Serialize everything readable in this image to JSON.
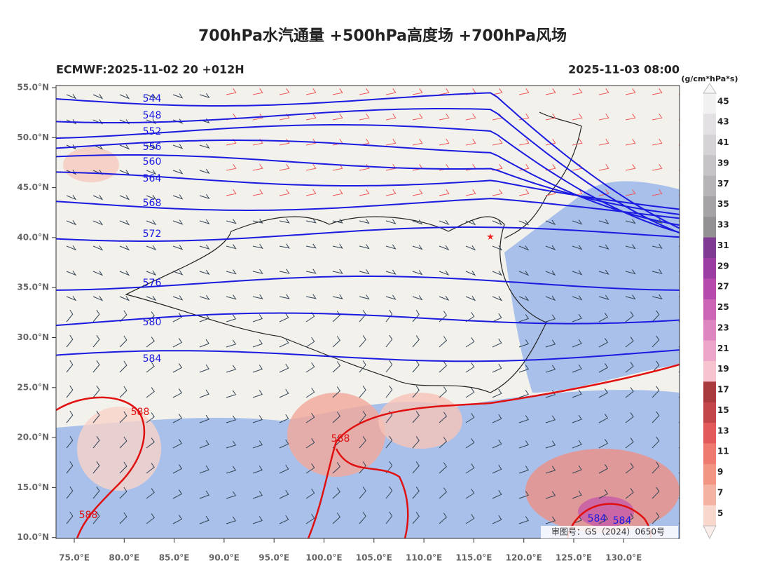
{
  "title": "700hPa水汽通量 +500hPa高度场 +700hPa风场",
  "model_run": "ECMWF:2025-11-02 20 +012H",
  "valid_time": "2025-11-03 08:00",
  "colorbar": {
    "unit": "(g/cm*hPa*s)",
    "ticks": [
      "45",
      "43",
      "41",
      "39",
      "37",
      "35",
      "33",
      "31",
      "29",
      "27",
      "25",
      "23",
      "21",
      "19",
      "17",
      "15",
      "13",
      "11",
      "9",
      "7",
      "5"
    ]
  },
  "lat_labels": [
    "55.0°N",
    "50.0°N",
    "45.0°N",
    "40.0°N",
    "35.0°N",
    "30.0°N",
    "25.0°N",
    "20.0°N",
    "15.0°N",
    "10.0°N"
  ],
  "lon_labels": [
    "75.0°E",
    "80.0°E",
    "85.0°E",
    "90.0°E",
    "95.0°E",
    "100.0°E",
    "105.0°E",
    "110.0°E",
    "115.0°E",
    "120.0°E",
    "125.0°E",
    "130.0°E"
  ],
  "height_labels": [
    "544",
    "548",
    "552",
    "556",
    "560",
    "564",
    "568",
    "572",
    "576",
    "580",
    "584"
  ],
  "high_labels": [
    "588",
    "588",
    "588",
    "584",
    "584"
  ],
  "approval": "审图号：GS（2024）0650号"
}
